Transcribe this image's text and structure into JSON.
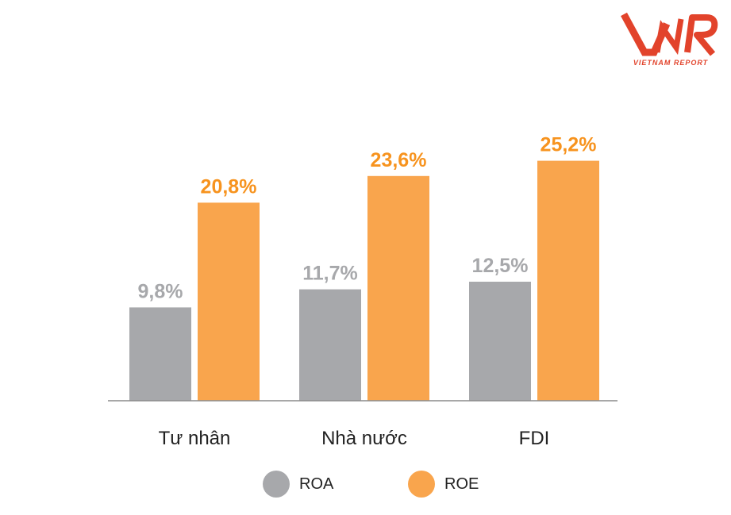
{
  "logo": {
    "mark": "VNR",
    "caption": "VIETNAM REPORT",
    "color": "#e2432b"
  },
  "chart_data": {
    "type": "bar",
    "categories": [
      "Tư nhân",
      "Nhà nước",
      "FDI"
    ],
    "series": [
      {
        "name": "ROA",
        "values": [
          9.8,
          11.7,
          12.5
        ],
        "labels": [
          "9,8%",
          "11,7%",
          "12,5%"
        ],
        "color": "#a7a8ab",
        "label_color": "#a7a8ab"
      },
      {
        "name": "ROE",
        "values": [
          20.8,
          23.6,
          25.2
        ],
        "labels": [
          "20,8%",
          "23,6%",
          "25,2%"
        ],
        "color": "#f9a54d",
        "label_color": "#f7931e"
      }
    ],
    "title": "",
    "xlabel": "",
    "ylabel": "",
    "ylim": [
      0,
      30
    ],
    "grid": false,
    "legend": "bottom-center"
  }
}
